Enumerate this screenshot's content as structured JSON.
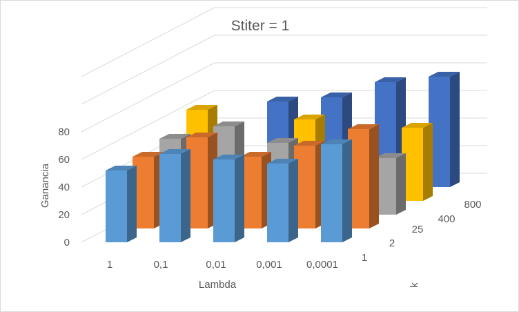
{
  "chart_data": {
    "type": "bar",
    "subtype": "3d-column",
    "title": "Stiter = 1",
    "xlabel": "Lambda",
    "ylabel": "Ganancia",
    "zlabel": "k",
    "categories": [
      "1",
      "0,1",
      "0,01",
      "0,001",
      "0,0001"
    ],
    "series": [
      {
        "name": "1",
        "color": "#5b9bd5",
        "values": [
          52,
          64,
          60,
          57,
          71
        ]
      },
      {
        "name": "2",
        "color": "#ed7d31",
        "values": [
          52,
          66,
          52,
          60,
          72
        ]
      },
      {
        "name": "25",
        "color": "#a5a5a5",
        "values": [
          55,
          64,
          52,
          0,
          41
        ]
      },
      {
        "name": "400",
        "color": "#ffc000",
        "values": [
          66,
          0,
          59,
          0,
          53
        ]
      },
      {
        "name": "800",
        "color": "#4472c4",
        "values": [
          0,
          62,
          65,
          76,
          80
        ]
      }
    ],
    "yticks": [
      0,
      20,
      40,
      60,
      80
    ],
    "ylim": [
      0,
      100
    ],
    "grid": true,
    "legend": "none"
  }
}
